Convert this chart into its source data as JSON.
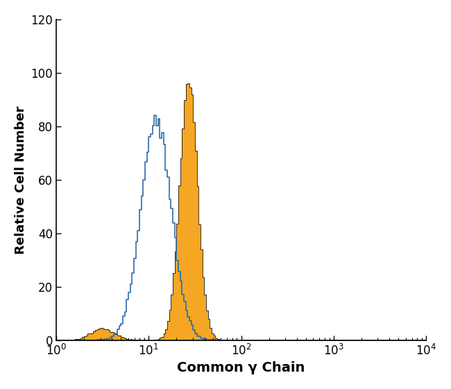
{
  "xlabel": "Common γ Chain",
  "ylabel": "Relative Cell Number",
  "xlim": [
    1,
    10000
  ],
  "ylim": [
    0,
    120
  ],
  "yticks": [
    0,
    20,
    40,
    60,
    80,
    100,
    120
  ],
  "blue_color": "#2b6ca8",
  "orange_fill_color": "#f5a623",
  "orange_line_color": "#1a1a1a",
  "blue_peak_height": 84,
  "orange_peak_height": 96,
  "background_color": "#ffffff",
  "figsize": [
    6.5,
    5.6
  ],
  "dpi": 100,
  "blue_peak_log": 1.08,
  "blue_sigma": 0.38,
  "orange_peak_log": 1.43,
  "orange_sigma": 0.22,
  "n_bins": 200
}
